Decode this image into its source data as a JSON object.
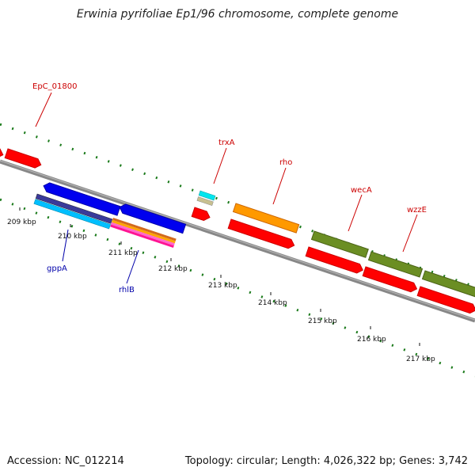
{
  "title": "Erwinia pyrifoliae Ep1/96 chromosome, complete genome",
  "footer": {
    "accession": "Accession: NC_012214",
    "summary": "Topology: circular; Length: 4,026,322 bp; Genes: 3,742"
  },
  "colors": {
    "backbone": "#888888",
    "gc_ticks": "#1a7a1a",
    "forward_label": "#cc0000",
    "reverse_label": "#0000aa"
  },
  "tick_labels": [
    "209 kbp",
    "210 kbp",
    "211 kbp",
    "212 kbp",
    "213 kbp",
    "214 kbp",
    "215 kbp",
    "216 kbp",
    "217 kbp"
  ],
  "gene_labels": [
    {
      "text": "EpC_01800",
      "strand": "forward"
    },
    {
      "text": "trxA",
      "strand": "forward"
    },
    {
      "text": "rho",
      "strand": "forward"
    },
    {
      "text": "wecA",
      "strand": "forward"
    },
    {
      "text": "wzzE",
      "strand": "forward"
    },
    {
      "text": "gppA",
      "strand": "reverse"
    },
    {
      "text": "rhlB",
      "strand": "reverse"
    }
  ]
}
